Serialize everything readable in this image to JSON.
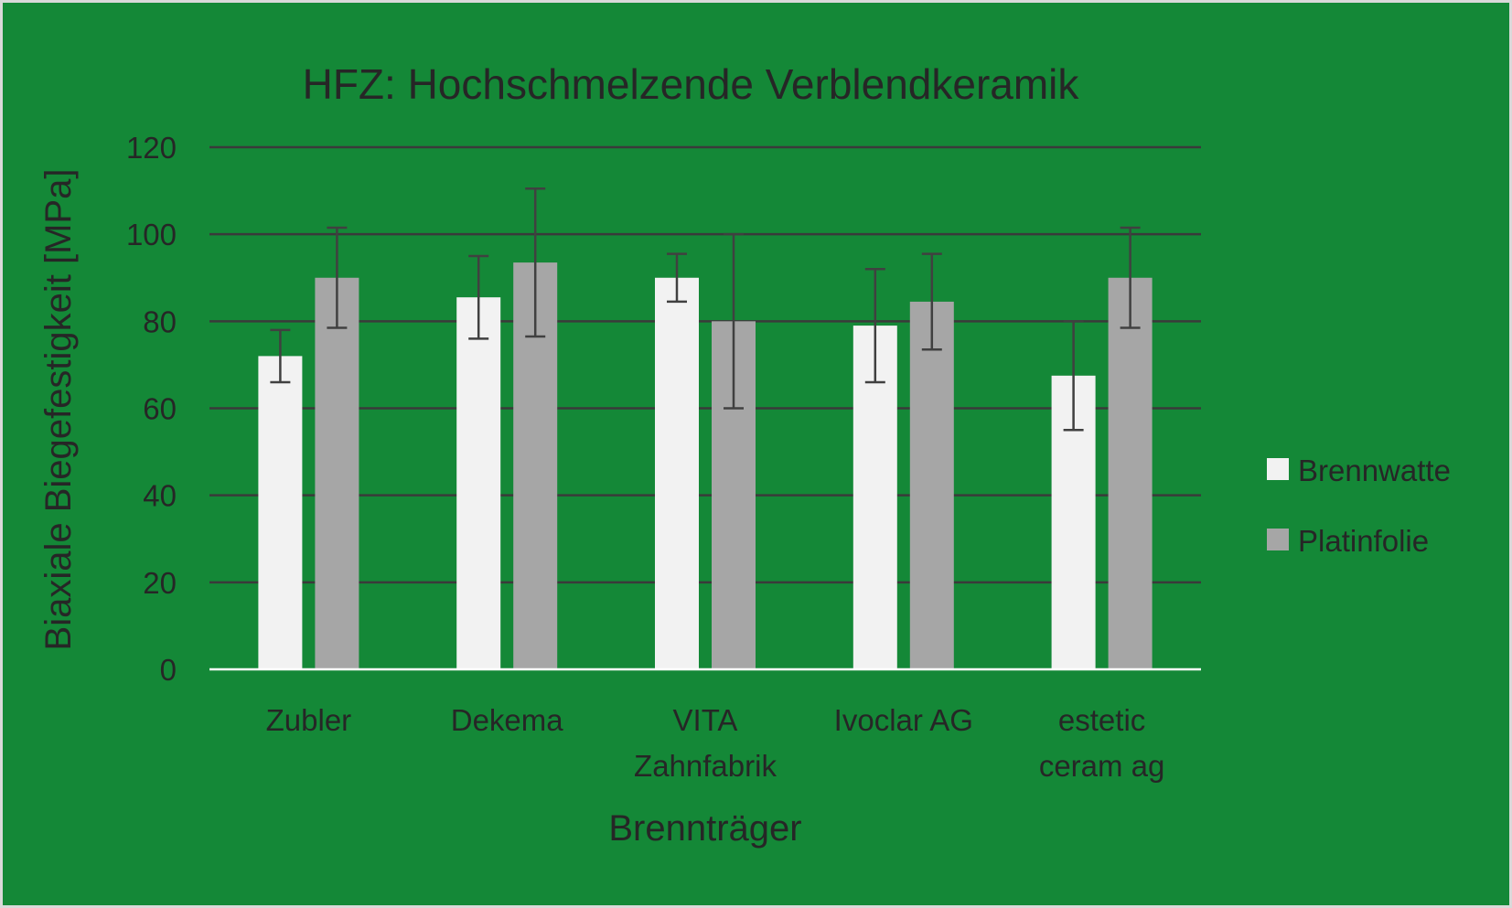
{
  "chart_data": {
    "type": "bar",
    "title": "HFZ: Hochschmelzende Verblendkeramik",
    "xlabel": "Brennträger",
    "ylabel": "Biaxiale Biegefestigkeit [MPa]",
    "ylim": [
      0,
      120
    ],
    "yticks": [
      "0",
      "20",
      "40",
      "60",
      "80",
      "100",
      "120"
    ],
    "grid": true,
    "legend_position": "right",
    "categories": [
      [
        "Zubler"
      ],
      [
        "Dekema"
      ],
      [
        "VITA",
        "Zahnfabrik"
      ],
      [
        "Ivoclar AG"
      ],
      [
        "estetic",
        "ceram ag"
      ]
    ],
    "series": [
      {
        "name": "Brennwatte",
        "color": "#f2f2f2",
        "values": [
          72,
          85.5,
          90,
          79,
          67.5
        ],
        "error": [
          6,
          9.5,
          5.5,
          13,
          12.5
        ]
      },
      {
        "name": "Platinfolie",
        "color": "#a6a6a6",
        "values": [
          90,
          93.5,
          80,
          84.5,
          90
        ],
        "error": [
          11.5,
          17,
          20,
          11,
          11.5
        ]
      }
    ]
  }
}
